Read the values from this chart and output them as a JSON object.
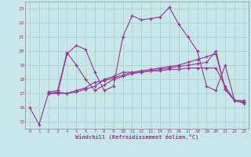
{
  "xlabel": "Windchill (Refroidissement éolien,°C)",
  "xlim": [
    -0.5,
    23.5
  ],
  "ylim": [
    14.5,
    23.5
  ],
  "xticks": [
    0,
    1,
    2,
    3,
    4,
    5,
    6,
    7,
    8,
    9,
    10,
    11,
    12,
    13,
    14,
    15,
    16,
    17,
    18,
    19,
    20,
    21,
    22,
    23
  ],
  "yticks": [
    15,
    16,
    17,
    18,
    19,
    20,
    21,
    22,
    23
  ],
  "bg_color": "#c8e8e8",
  "grid_color": "#aacccc",
  "line_color": "#993399",
  "line1_x": [
    0,
    1,
    2,
    3,
    4,
    5,
    6,
    7,
    8,
    9,
    10,
    11,
    12,
    13,
    14,
    15,
    16,
    17,
    18,
    19,
    20,
    21,
    22,
    23
  ],
  "line1_y": [
    16.0,
    14.8,
    17.0,
    17.0,
    19.8,
    20.4,
    20.1,
    18.5,
    17.2,
    17.5,
    21.0,
    22.5,
    22.2,
    22.3,
    22.4,
    23.1,
    21.9,
    21.0,
    20.0,
    17.5,
    17.2,
    19.0,
    16.5,
    16.3
  ],
  "line2_x": [
    2,
    3,
    4,
    5,
    6,
    7,
    8,
    9,
    10,
    11,
    12,
    13,
    14,
    15,
    16,
    17,
    18,
    19,
    20,
    21,
    22,
    23
  ],
  "line2_y": [
    17.0,
    17.1,
    17.0,
    17.2,
    17.4,
    17.8,
    17.9,
    18.1,
    18.3,
    18.5,
    18.5,
    18.6,
    18.6,
    18.7,
    18.7,
    18.8,
    18.8,
    18.8,
    18.8,
    17.5,
    16.5,
    16.5
  ],
  "line3_x": [
    2,
    3,
    4,
    5,
    6,
    7,
    8,
    9,
    10,
    11,
    12,
    13,
    14,
    15,
    16,
    17,
    18,
    19,
    20,
    21,
    22,
    23
  ],
  "line3_y": [
    17.1,
    17.2,
    19.9,
    19.0,
    18.0,
    17.2,
    17.6,
    18.0,
    18.2,
    18.4,
    18.5,
    18.6,
    18.7,
    18.8,
    18.9,
    19.0,
    19.1,
    19.2,
    20.0,
    17.3,
    16.5,
    16.4
  ],
  "line4_x": [
    2,
    3,
    4,
    5,
    6,
    7,
    8,
    9,
    10,
    11,
    12,
    13,
    14,
    15,
    16,
    17,
    18,
    19,
    20,
    21,
    22,
    23
  ],
  "line4_y": [
    17.0,
    17.0,
    17.0,
    17.1,
    17.3,
    17.5,
    18.0,
    18.2,
    18.5,
    18.5,
    18.6,
    18.7,
    18.8,
    18.9,
    19.0,
    19.2,
    19.4,
    19.6,
    19.8,
    17.3,
    16.5,
    16.4
  ]
}
